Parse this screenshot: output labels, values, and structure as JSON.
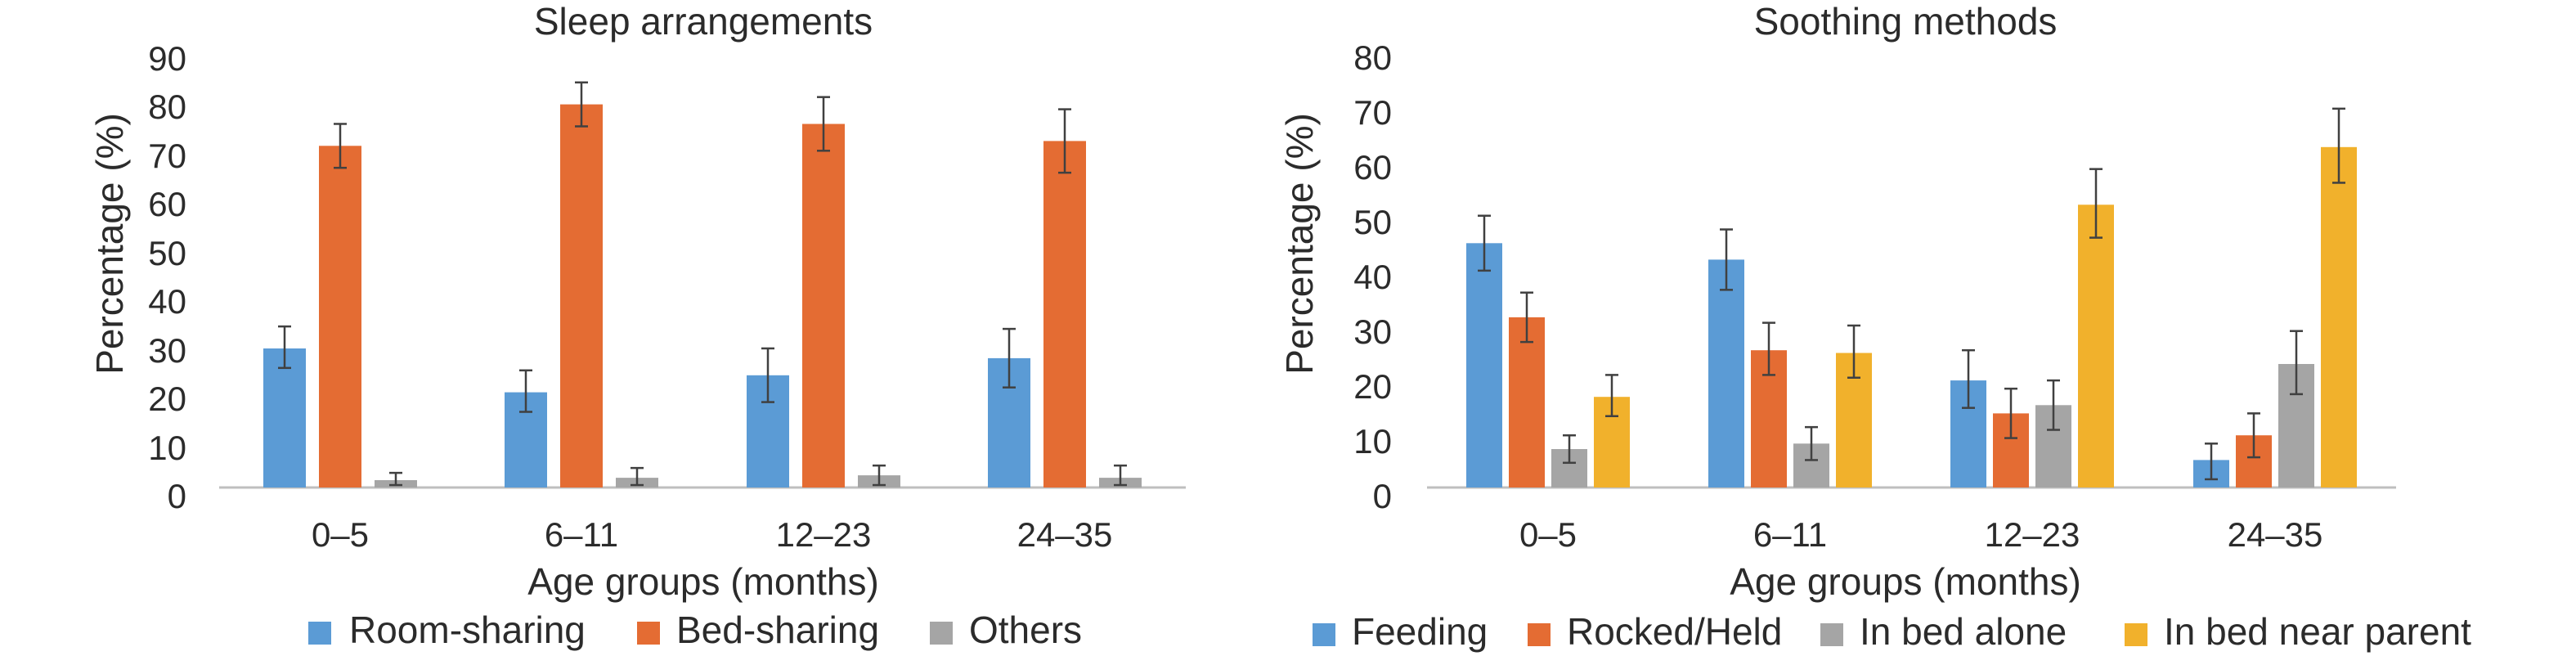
{
  "chart_data": [
    {
      "type": "bar",
      "title": "Sleep arrangements",
      "xlabel": "Age groups (months)",
      "ylabel": "Percentage (%)",
      "ylim": [
        0,
        90
      ],
      "yticks": [
        0,
        10,
        20,
        30,
        40,
        50,
        60,
        70,
        80,
        90
      ],
      "categories": [
        "0–5",
        "6–11",
        "12–23",
        "24–35"
      ],
      "grid": false,
      "legend_position": "bottom",
      "error_bars": true,
      "series": [
        {
          "name": "Room-sharing",
          "color": "#5b9bd5",
          "values": [
            28.5,
            19.5,
            23.0,
            26.5
          ],
          "err_low": [
            24.5,
            15.5,
            17.5,
            20.5
          ],
          "err_high": [
            33.0,
            24.0,
            28.5,
            32.5
          ]
        },
        {
          "name": "Bed-sharing",
          "color": "#e46c33",
          "values": [
            70.0,
            78.5,
            74.5,
            71.0
          ],
          "err_low": [
            65.5,
            74.0,
            69.0,
            64.5
          ],
          "err_high": [
            74.5,
            83.0,
            80.0,
            77.5
          ]
        },
        {
          "name": "Others",
          "color": "#a5a5a5",
          "values": [
            1.5,
            2.0,
            2.5,
            2.0
          ],
          "err_low": [
            0.5,
            0.5,
            0.5,
            0.5
          ],
          "err_high": [
            3.0,
            4.0,
            4.5,
            4.5
          ]
        }
      ]
    },
    {
      "type": "bar",
      "title": "Soothing methods",
      "xlabel": "Age groups (months)",
      "ylabel": "Percentage (%)",
      "ylim": [
        0,
        80
      ],
      "yticks": [
        0,
        10,
        20,
        30,
        40,
        50,
        60,
        70,
        80
      ],
      "categories": [
        "0–5",
        "6–11",
        "12–23",
        "24–35"
      ],
      "grid": false,
      "legend_position": "bottom",
      "error_bars": true,
      "series": [
        {
          "name": "Feeding",
          "color": "#5b9bd5",
          "values": [
            44.5,
            41.5,
            19.5,
            5.0
          ],
          "err_low": [
            39.5,
            36.0,
            14.5,
            1.5
          ],
          "err_high": [
            49.5,
            47.0,
            25.0,
            8.0
          ]
        },
        {
          "name": "Rocked/Held",
          "color": "#e46c33",
          "values": [
            31.0,
            25.0,
            13.5,
            9.5
          ],
          "err_low": [
            26.5,
            20.5,
            9.0,
            5.5
          ],
          "err_high": [
            35.5,
            30.0,
            18.0,
            13.5
          ]
        },
        {
          "name": "In bed alone",
          "color": "#a5a5a5",
          "values": [
            7.0,
            8.0,
            15.0,
            22.5
          ],
          "err_low": [
            4.5,
            5.0,
            10.5,
            17.0
          ],
          "err_high": [
            9.5,
            11.0,
            19.5,
            28.5
          ]
        },
        {
          "name": "In bed near parent",
          "color": "#f1b12c",
          "values": [
            16.5,
            24.5,
            51.5,
            62.0
          ],
          "err_low": [
            13.0,
            20.0,
            45.5,
            55.5
          ],
          "err_high": [
            20.5,
            29.5,
            58.0,
            69.0
          ]
        }
      ]
    }
  ]
}
